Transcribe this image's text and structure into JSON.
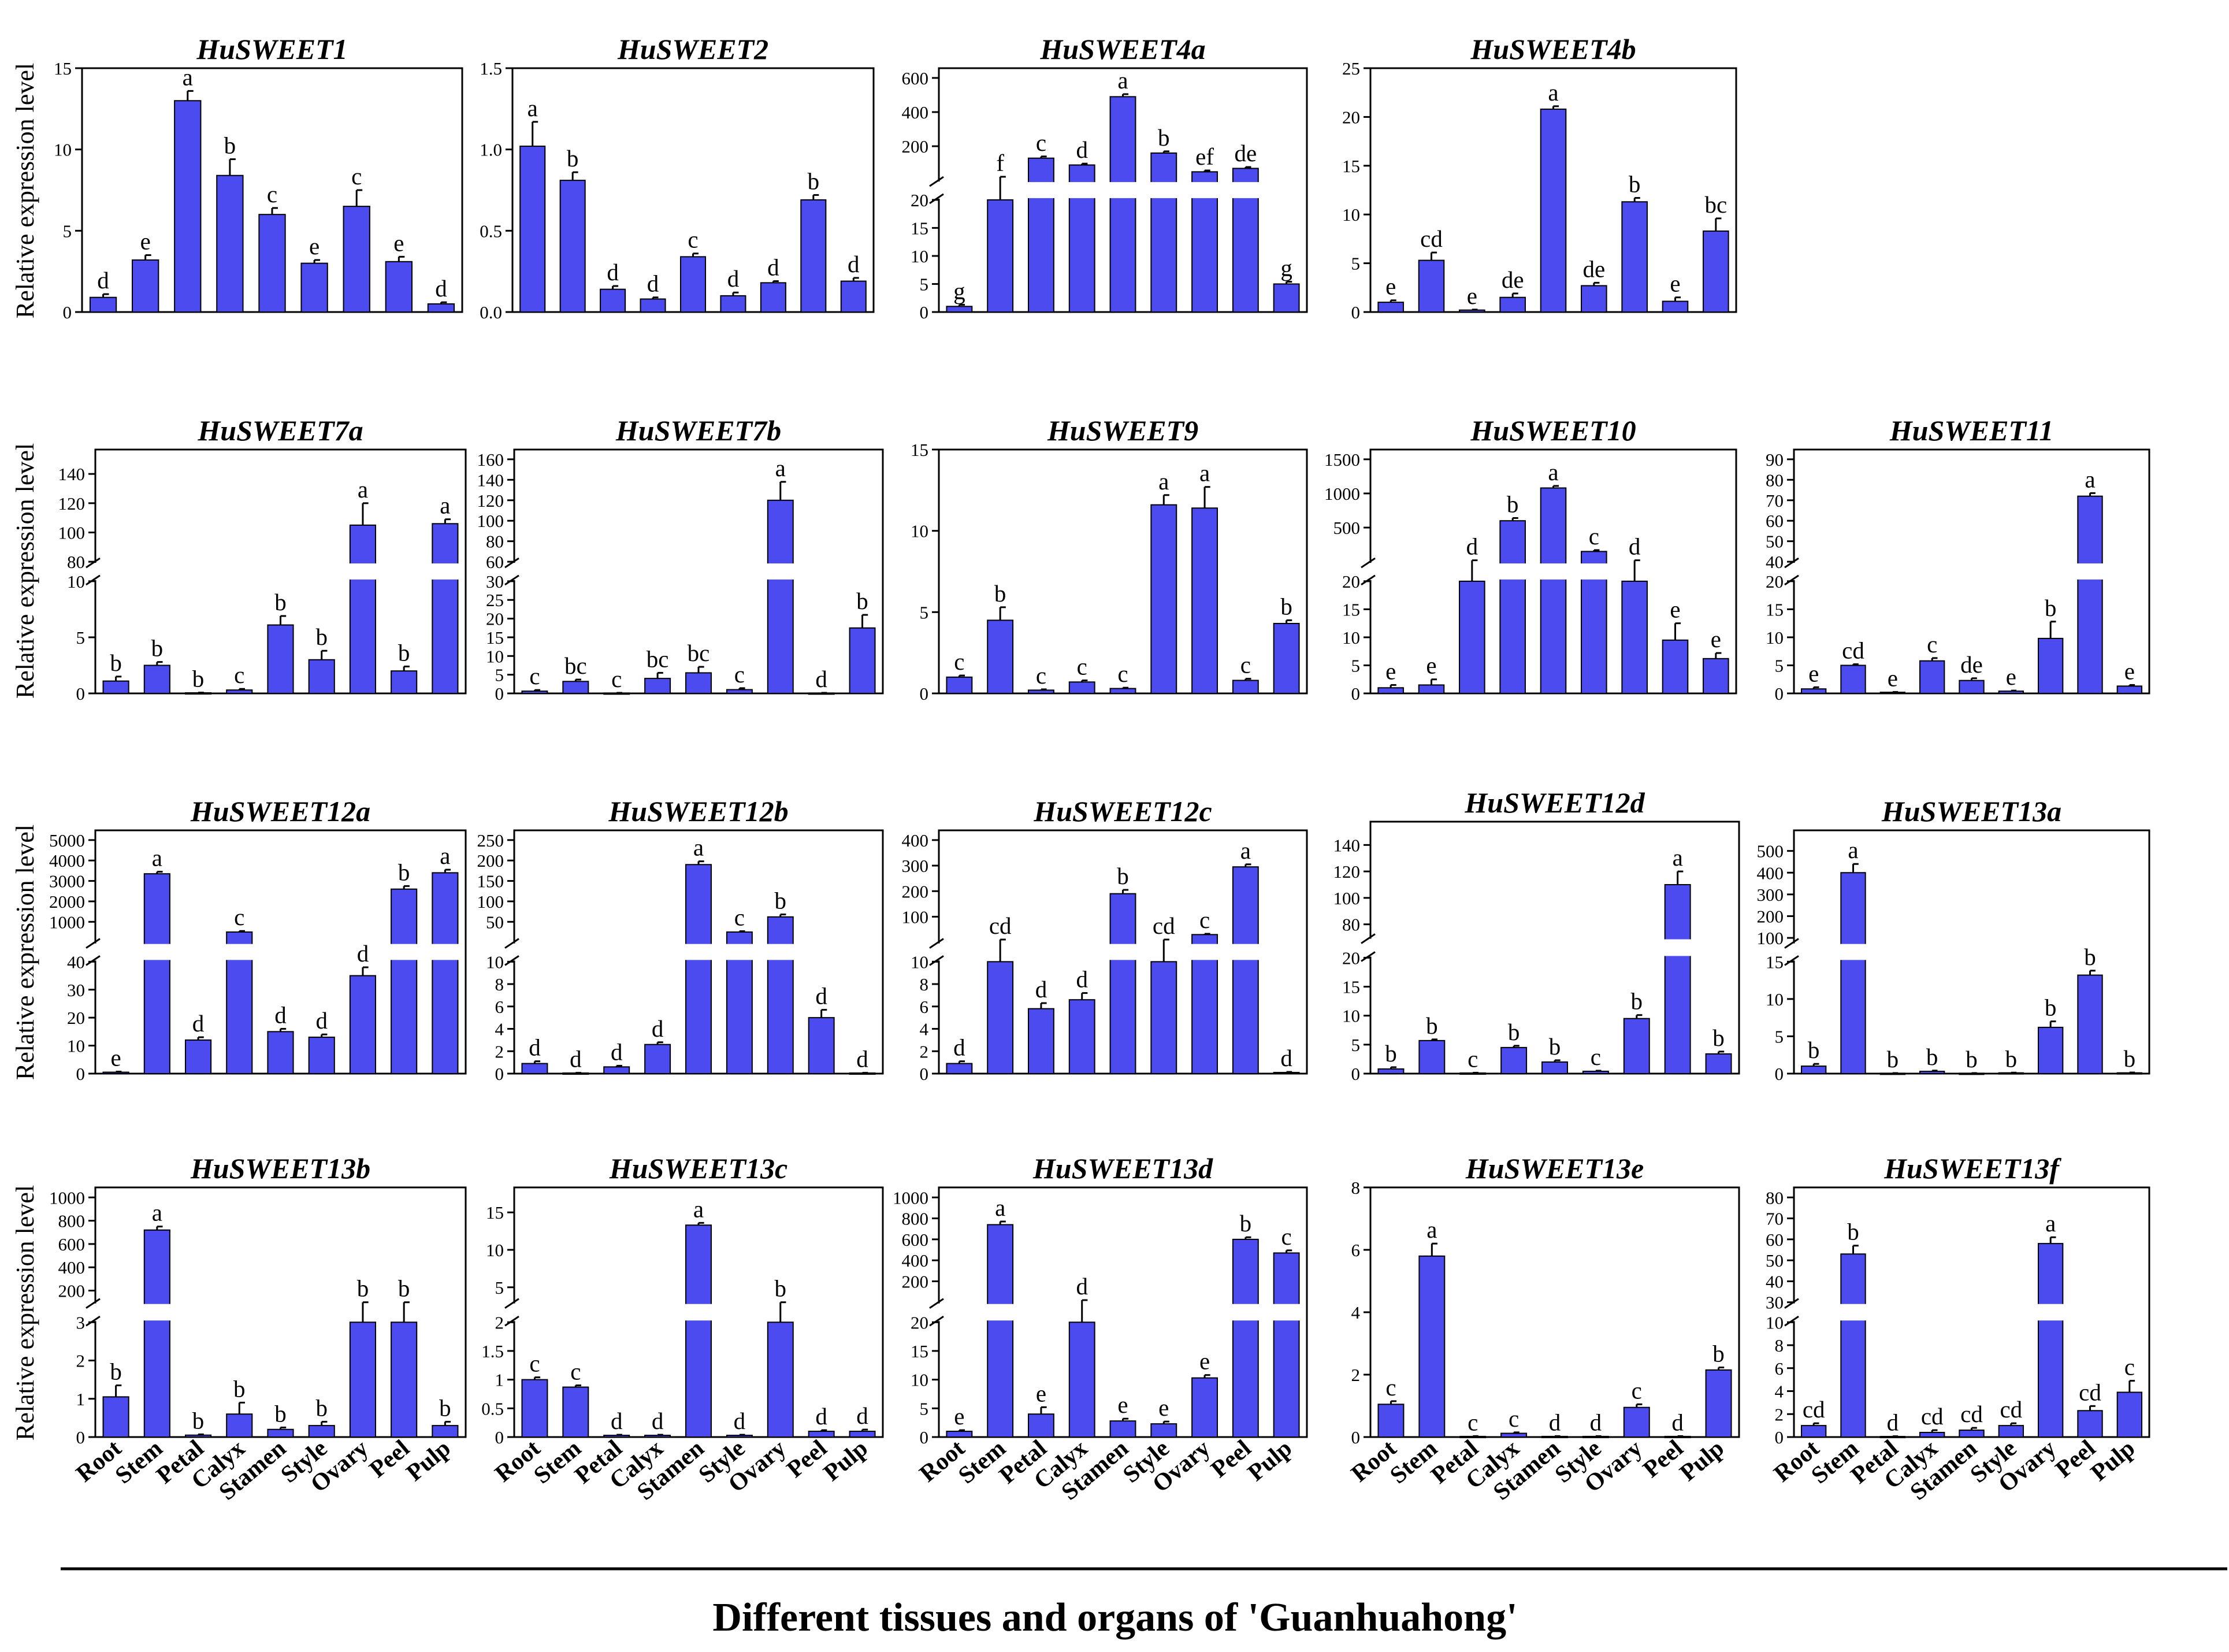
{
  "figure": {
    "ylabel": "Relative expression level",
    "xlabel": "Different tissues and organs of 'Guanhuahong'",
    "bar_color": "#4b4bf0"
  },
  "chart_data": [
    {
      "type": "bar",
      "title": "HuSWEET1",
      "categories": [
        "Root",
        "Stem",
        "Petal",
        "Calyx",
        "Stamen",
        "Style",
        "Ovary",
        "Peel",
        "Pulp"
      ],
      "values": [
        0.9,
        3.2,
        13.0,
        8.4,
        6.0,
        3.0,
        6.5,
        3.1,
        0.5
      ],
      "errors": [
        0.2,
        0.3,
        0.6,
        1.0,
        0.4,
        0.2,
        1.0,
        0.3,
        0.1
      ],
      "letters": [
        "d",
        "e",
        "a",
        "b",
        "c",
        "e",
        "c",
        "e",
        "d"
      ],
      "ylim": [
        0,
        15
      ],
      "ticks": [
        0,
        5,
        10,
        15
      ],
      "tick_labels": [
        "0",
        "5",
        "10",
        "15"
      ],
      "ylabel": "Relative expression level"
    },
    {
      "type": "bar",
      "title": "HuSWEET2",
      "categories": [
        "Root",
        "Stem",
        "Petal",
        "Calyx",
        "Stamen",
        "Style",
        "Ovary",
        "Peel",
        "Pulp"
      ],
      "values": [
        1.02,
        0.81,
        0.14,
        0.08,
        0.34,
        0.1,
        0.18,
        0.69,
        0.19
      ],
      "errors": [
        0.15,
        0.05,
        0.02,
        0.01,
        0.02,
        0.02,
        0.01,
        0.03,
        0.02
      ],
      "letters": [
        "a",
        "b",
        "d",
        "d",
        "c",
        "d",
        "d",
        "b",
        "d"
      ],
      "ylim": [
        0,
        1.5
      ],
      "ticks": [
        0,
        0.5,
        1.0,
        1.5
      ],
      "tick_labels": [
        "0.0",
        "0.5",
        "1.0",
        "1.5"
      ]
    },
    {
      "type": "bar",
      "title": "HuSWEET4a",
      "categories": [
        "Root",
        "Stem",
        "Petal",
        "Calyx",
        "Stamen",
        "Style",
        "Ovary",
        "Peel",
        "Pulp"
      ],
      "values": [
        1.0,
        20,
        130,
        90,
        490,
        160,
        50,
        70,
        5.0
      ],
      "errors": [
        0.3,
        1,
        10,
        8,
        15,
        10,
        8,
        8,
        0.4
      ],
      "letters": [
        "g",
        "f",
        "c",
        "d",
        "a",
        "b",
        "ef",
        "de",
        "g"
      ],
      "broken_axis": {
        "lower": [
          0,
          20
        ],
        "upper": [
          0,
          600
        ],
        "lower_ticks": [
          0,
          5,
          10,
          15,
          20
        ],
        "upper_ticks": [
          200,
          400,
          600
        ]
      }
    },
    {
      "type": "bar",
      "title": "HuSWEET4b",
      "categories": [
        "Root",
        "Stem",
        "Petal",
        "Calyx",
        "Stamen",
        "Style",
        "Ovary",
        "Peel",
        "Pulp"
      ],
      "values": [
        1.0,
        5.3,
        0.2,
        1.5,
        20.8,
        2.7,
        11.3,
        1.1,
        8.3
      ],
      "errors": [
        0.2,
        0.8,
        0.05,
        0.4,
        0.3,
        0.3,
        0.4,
        0.4,
        1.3
      ],
      "letters": [
        "e",
        "cd",
        "e",
        "de",
        "a",
        "de",
        "b",
        "e",
        "bc"
      ],
      "ylim": [
        0,
        25
      ],
      "ticks": [
        0,
        5,
        10,
        15,
        20,
        25
      ],
      "tick_labels": [
        "0",
        "5",
        "10",
        "15",
        "20",
        "25"
      ]
    },
    {
      "type": "bar",
      "title": "HuSWEET7a",
      "categories": [
        "Root",
        "Stem",
        "Petal",
        "Calyx",
        "Stamen",
        "Style",
        "Ovary",
        "Peel",
        "Pulp"
      ],
      "values": [
        1.1,
        2.5,
        0.05,
        0.3,
        6.1,
        3.0,
        105,
        2.0,
        106
      ],
      "errors": [
        0.4,
        0.3,
        0.02,
        0.1,
        0.8,
        0.8,
        15,
        0.4,
        3
      ],
      "letters": [
        "b",
        "b",
        "b",
        "c",
        "b",
        "b",
        "a",
        "b",
        "a"
      ],
      "ylabel": "Relative expression level",
      "broken_axis": {
        "lower": [
          0,
          10
        ],
        "upper": [
          80,
          150
        ],
        "lower_ticks": [
          0,
          5,
          10
        ],
        "upper_ticks": [
          80,
          100,
          120,
          140
        ]
      }
    },
    {
      "type": "bar",
      "title": "HuSWEET7b",
      "categories": [
        "Root",
        "Stem",
        "Petal",
        "Calyx",
        "Stamen",
        "Style",
        "Ovary",
        "Peel",
        "Pulp"
      ],
      "values": [
        0.6,
        3.2,
        0.1,
        4.0,
        5.5,
        1.0,
        120,
        0.1,
        17.5
      ],
      "errors": [
        0.3,
        0.5,
        0.05,
        1.5,
        1.6,
        0.4,
        18,
        0.05,
        3.5
      ],
      "letters": [
        "c",
        "bc",
        "c",
        "bc",
        "bc",
        "c",
        "a",
        "d",
        "b"
      ],
      "broken_axis": {
        "lower": [
          0,
          30
        ],
        "upper": [
          60,
          160
        ],
        "lower_ticks": [
          0,
          5,
          10,
          15,
          20,
          25,
          30
        ],
        "upper_ticks": [
          60,
          80,
          100,
          120,
          140,
          160
        ]
      }
    },
    {
      "type": "bar",
      "title": "HuSWEET9",
      "categories": [
        "Root",
        "Stem",
        "Petal",
        "Calyx",
        "Stamen",
        "Style",
        "Ovary",
        "Peel",
        "Pulp"
      ],
      "values": [
        1.0,
        4.5,
        0.2,
        0.7,
        0.3,
        11.6,
        11.4,
        0.8,
        4.3
      ],
      "errors": [
        0.1,
        0.8,
        0.05,
        0.1,
        0.05,
        0.6,
        1.3,
        0.1,
        0.2
      ],
      "letters": [
        "c",
        "b",
        "c",
        "c",
        "c",
        "a",
        "a",
        "c",
        "b"
      ],
      "ylim": [
        0,
        15
      ],
      "ticks": [
        0,
        5,
        10,
        15
      ],
      "tick_labels": [
        "0",
        "5",
        "10",
        "15"
      ]
    },
    {
      "type": "bar",
      "title": "HuSWEET10",
      "categories": [
        "Root",
        "Stem",
        "Petal",
        "Calyx",
        "Stamen",
        "Style",
        "Ovary",
        "Peel",
        "Pulp"
      ],
      "values": [
        1.0,
        1.5,
        20,
        600,
        1080,
        150,
        20,
        9.5,
        6.2
      ],
      "errors": [
        0.5,
        1.0,
        1,
        40,
        30,
        20,
        1,
        3,
        1
      ],
      "letters": [
        "e",
        "e",
        "d",
        "b",
        "a",
        "c",
        "d",
        "e",
        "e"
      ],
      "broken_axis": {
        "lower": [
          0,
          20
        ],
        "upper": [
          0,
          1500
        ],
        "lower_ticks": [
          0,
          5,
          10,
          15,
          20
        ],
        "upper_ticks": [
          500,
          1000,
          1500
        ]
      }
    },
    {
      "type": "bar",
      "title": "HuSWEET11",
      "categories": [
        "Root",
        "Stem",
        "Petal",
        "Calyx",
        "Stamen",
        "Style",
        "Ovary",
        "Peel",
        "Pulp"
      ],
      "values": [
        0.8,
        5.0,
        0.2,
        5.8,
        2.3,
        0.4,
        9.8,
        72,
        1.3
      ],
      "errors": [
        0.3,
        0.2,
        0.05,
        0.5,
        0.4,
        0.1,
        3.0,
        1.5,
        0.2
      ],
      "letters": [
        "e",
        "cd",
        "e",
        "c",
        "de",
        "e",
        "b",
        "a",
        "e"
      ],
      "broken_axis": {
        "lower": [
          0,
          20
        ],
        "upper": [
          40,
          90
        ],
        "lower_ticks": [
          0,
          5,
          10,
          15,
          20
        ],
        "upper_ticks": [
          40,
          50,
          60,
          70,
          80,
          90
        ]
      }
    },
    {
      "type": "bar",
      "title": "HuSWEET12a",
      "categories": [
        "Root",
        "Stem",
        "Petal",
        "Calyx",
        "Stamen",
        "Style",
        "Ovary",
        "Peel",
        "Pulp"
      ],
      "values": [
        0.5,
        3350,
        12,
        500,
        15,
        13,
        35,
        2600,
        3400
      ],
      "errors": [
        0.2,
        100,
        1,
        50,
        1,
        1,
        3,
        150,
        150
      ],
      "letters": [
        "e",
        "a",
        "d",
        "c",
        "d",
        "d",
        "d",
        "b",
        "a"
      ],
      "ylabel": "Relative expression level",
      "broken_axis": {
        "lower": [
          0,
          40
        ],
        "upper": [
          0,
          5000
        ],
        "lower_ticks": [
          0,
          10,
          20,
          30,
          40
        ],
        "upper_ticks": [
          1000,
          2000,
          3000,
          4000,
          5000
        ]
      }
    },
    {
      "type": "bar",
      "title": "HuSWEET12b",
      "categories": [
        "Root",
        "Stem",
        "Petal",
        "Calyx",
        "Stamen",
        "Style",
        "Ovary",
        "Peel",
        "Pulp"
      ],
      "values": [
        0.9,
        0.05,
        0.6,
        2.6,
        190,
        25,
        62,
        5.0,
        0.05
      ],
      "errors": [
        0.2,
        0.02,
        0.1,
        0.2,
        8,
        2,
        6,
        0.7,
        0.02
      ],
      "letters": [
        "d",
        "d",
        "d",
        "d",
        "a",
        "c",
        "b",
        "d",
        "d"
      ],
      "broken_axis": {
        "lower": [
          0,
          10
        ],
        "upper": [
          0,
          250
        ],
        "lower_ticks": [
          0,
          2,
          4,
          6,
          8,
          10
        ],
        "upper_ticks": [
          50,
          100,
          150,
          200,
          250
        ]
      }
    },
    {
      "type": "bar",
      "title": "HuSWEET12c",
      "categories": [
        "Root",
        "Stem",
        "Petal",
        "Calyx",
        "Stamen",
        "Style",
        "Ovary",
        "Peel",
        "Pulp"
      ],
      "values": [
        0.9,
        10,
        5.8,
        6.6,
        190,
        10,
        30,
        295,
        0.1
      ],
      "errors": [
        0.2,
        0.5,
        0.5,
        0.6,
        15,
        0.5,
        3,
        10,
        0.05
      ],
      "letters": [
        "d",
        "cd",
        "d",
        "d",
        "b",
        "cd",
        "c",
        "a",
        "d"
      ],
      "broken_axis": {
        "lower": [
          0,
          10
        ],
        "upper": [
          0,
          400
        ],
        "lower_ticks": [
          0,
          2,
          4,
          6,
          8,
          10
        ],
        "upper_ticks": [
          100,
          200,
          300,
          400
        ]
      }
    },
    {
      "type": "bar",
      "title": "HuSWEET12d",
      "categories": [
        "Root",
        "Stem",
        "Petal",
        "Calyx",
        "Stamen",
        "Style",
        "Ovary",
        "Peel",
        "Pulp"
      ],
      "values": [
        0.8,
        5.7,
        0.1,
        4.5,
        2.0,
        0.4,
        9.5,
        110,
        3.4
      ],
      "errors": [
        0.3,
        0.2,
        0.05,
        0.3,
        0.3,
        0.1,
        0.6,
        10,
        0.4
      ],
      "letters": [
        "b",
        "b",
        "c",
        "b",
        "b",
        "c",
        "b",
        "a",
        "b"
      ],
      "broken_axis": {
        "lower": [
          0,
          20
        ],
        "upper": [
          70,
          150
        ],
        "lower_ticks": [
          0,
          5,
          10,
          15,
          20
        ],
        "upper_ticks": [
          80,
          100,
          120,
          140
        ]
      }
    },
    {
      "type": "bar",
      "title": "HuSWEET13a",
      "categories": [
        "Root",
        "Stem",
        "Petal",
        "Calyx",
        "Stamen",
        "Style",
        "Ovary",
        "Peel",
        "Pulp"
      ],
      "values": [
        1.0,
        400,
        0.05,
        0.3,
        0.05,
        0.1,
        6.2,
        13.2,
        0.1
      ],
      "errors": [
        0.3,
        40,
        0.02,
        0.1,
        0.02,
        0.03,
        0.8,
        0.6,
        0.05
      ],
      "letters": [
        "b",
        "a",
        "b",
        "b",
        "b",
        "b",
        "b",
        "b",
        "b"
      ],
      "broken_axis": {
        "lower": [
          0,
          15
        ],
        "upper": [
          80,
          550
        ],
        "lower_ticks": [
          0,
          5,
          10,
          15
        ],
        "upper_ticks": [
          100,
          200,
          300,
          400,
          500
        ]
      }
    },
    {
      "type": "bar",
      "title": "HuSWEET13b",
      "categories": [
        "Root",
        "Stem",
        "Petal",
        "Calyx",
        "Stamen",
        "Style",
        "Ovary",
        "Peel",
        "Pulp"
      ],
      "values": [
        1.05,
        720,
        0.05,
        0.6,
        0.2,
        0.3,
        3.0,
        3.0,
        0.3
      ],
      "errors": [
        0.3,
        30,
        0.02,
        0.3,
        0.05,
        0.1,
        0.05,
        0.05,
        0.1
      ],
      "letters": [
        "b",
        "a",
        "b",
        "b",
        "b",
        "b",
        "b",
        "b",
        "b"
      ],
      "ylabel": "Relative expression level",
      "broken_axis": {
        "lower": [
          0,
          3
        ],
        "upper": [
          100,
          1000
        ],
        "lower_ticks": [
          0,
          1,
          2,
          3
        ],
        "upper_ticks": [
          200,
          400,
          600,
          800,
          1000
        ]
      }
    },
    {
      "type": "bar",
      "title": "HuSWEET13c",
      "categories": [
        "Root",
        "Stem",
        "Petal",
        "Calyx",
        "Stamen",
        "Style",
        "Ovary",
        "Peel",
        "Pulp"
      ],
      "values": [
        1.0,
        0.87,
        0.03,
        0.03,
        13.3,
        0.03,
        2.0,
        0.1,
        0.1
      ],
      "errors": [
        0.04,
        0.03,
        0.01,
        0.01,
        0.3,
        0.01,
        0.05,
        0.02,
        0.03
      ],
      "letters": [
        "c",
        "c",
        "d",
        "d",
        "a",
        "d",
        "b",
        "d",
        "d"
      ],
      "broken_axis": {
        "lower": [
          0,
          2.0
        ],
        "upper": [
          3,
          17
        ],
        "lower_ticks": [
          0,
          0.5,
          1.0,
          1.5,
          2.0
        ],
        "upper_ticks": [
          5,
          10,
          15
        ]
      }
    },
    {
      "type": "bar",
      "title": "HuSWEET13d",
      "categories": [
        "Root",
        "Stem",
        "Petal",
        "Calyx",
        "Stamen",
        "Style",
        "Ovary",
        "Peel",
        "Pulp"
      ],
      "values": [
        1.0,
        740,
        4.0,
        20,
        2.8,
        2.3,
        10.3,
        600,
        470
      ],
      "errors": [
        0.2,
        30,
        1.2,
        0.5,
        0.4,
        0.4,
        0.5,
        20,
        25
      ],
      "letters": [
        "e",
        "a",
        "e",
        "d",
        "e",
        "e",
        "e",
        "b",
        "c"
      ],
      "broken_axis": {
        "lower": [
          0,
          20
        ],
        "upper": [
          0,
          1000
        ],
        "lower_ticks": [
          0,
          5,
          10,
          15,
          20
        ],
        "upper_ticks": [
          200,
          400,
          600,
          800,
          1000
        ]
      }
    },
    {
      "type": "bar",
      "title": "HuSWEET13e",
      "categories": [
        "Root",
        "Stem",
        "Petal",
        "Calyx",
        "Stamen",
        "Style",
        "Ovary",
        "Peel",
        "Pulp"
      ],
      "values": [
        1.05,
        5.8,
        0.02,
        0.12,
        0.02,
        0.02,
        0.95,
        0.02,
        2.15
      ],
      "errors": [
        0.1,
        0.4,
        0.01,
        0.03,
        0.01,
        0.01,
        0.1,
        0.01,
        0.08
      ],
      "letters": [
        "c",
        "a",
        "c",
        "c",
        "d",
        "d",
        "c",
        "d",
        "b"
      ],
      "ylim": [
        0,
        8
      ],
      "ticks": [
        0,
        2,
        4,
        6,
        8
      ],
      "tick_labels": [
        "0",
        "2",
        "4",
        "6",
        "8"
      ]
    },
    {
      "type": "bar",
      "title": "HuSWEET13f",
      "categories": [
        "Root",
        "Stem",
        "Petal",
        "Calyx",
        "Stamen",
        "Style",
        "Ovary",
        "Peel",
        "Pulp"
      ],
      "values": [
        1.0,
        53,
        0.05,
        0.4,
        0.6,
        1.0,
        58,
        2.3,
        3.9
      ],
      "errors": [
        0.2,
        4,
        0.02,
        0.2,
        0.2,
        0.2,
        3,
        0.4,
        1.0
      ],
      "letters": [
        "cd",
        "b",
        "d",
        "cd",
        "cd",
        "cd",
        "a",
        "cd",
        "c"
      ],
      "broken_axis": {
        "lower": [
          0,
          10
        ],
        "upper": [
          30,
          80
        ],
        "lower_ticks": [
          0,
          2,
          4,
          6,
          8,
          10
        ],
        "upper_ticks": [
          30,
          40,
          50,
          60,
          70,
          80
        ]
      }
    }
  ]
}
